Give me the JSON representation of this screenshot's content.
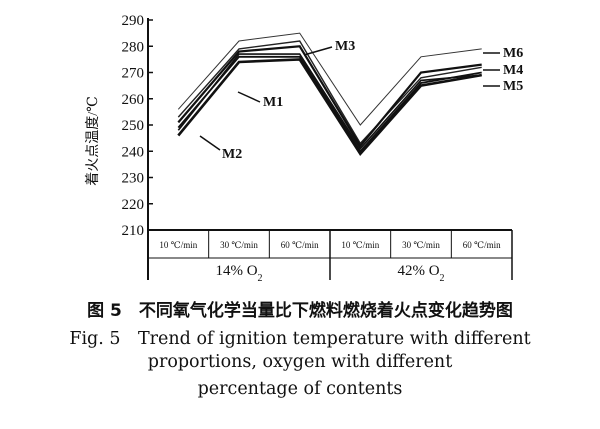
{
  "chart_data": {
    "type": "line",
    "ylabel": "着火点温度/℃",
    "ylim": [
      210,
      290
    ],
    "yticks": [
      210,
      220,
      230,
      240,
      250,
      260,
      270,
      280,
      290
    ],
    "categories": [
      "10 ℃/min",
      "30 ℃/min",
      "60 ℃/min",
      "10 ℃/min",
      "30 ℃/min",
      "60 ℃/min"
    ],
    "groups": [
      {
        "label": "14% O",
        "sub": "2"
      },
      {
        "label": "42% O",
        "sub": "2"
      }
    ],
    "series": [
      {
        "name": "M1",
        "values": [
          249,
          276,
          276,
          240,
          266,
          270
        ]
      },
      {
        "name": "M2",
        "values": [
          246,
          274,
          275,
          239,
          265,
          269
        ]
      },
      {
        "name": "M3",
        "values": [
          253,
          279,
          282,
          243,
          268,
          272
        ]
      },
      {
        "name": "M4",
        "values": [
          251,
          278,
          280,
          242,
          270,
          273
        ]
      },
      {
        "name": "M5",
        "values": [
          248,
          277,
          277,
          241,
          267,
          269
        ]
      },
      {
        "name": "M6",
        "values": [
          256,
          282,
          285,
          250,
          276,
          279
        ]
      }
    ],
    "grid": false,
    "legend": "direct labels on lines"
  },
  "caption": {
    "chinese": "图 5　不同氧气化学当量比下燃料燃烧着火点变化趋势图",
    "english_line1": "Fig. 5　Trend of ignition temperature with different",
    "english_line2": "proportions, oxygen with different",
    "english_line3": "percentage of contents"
  }
}
